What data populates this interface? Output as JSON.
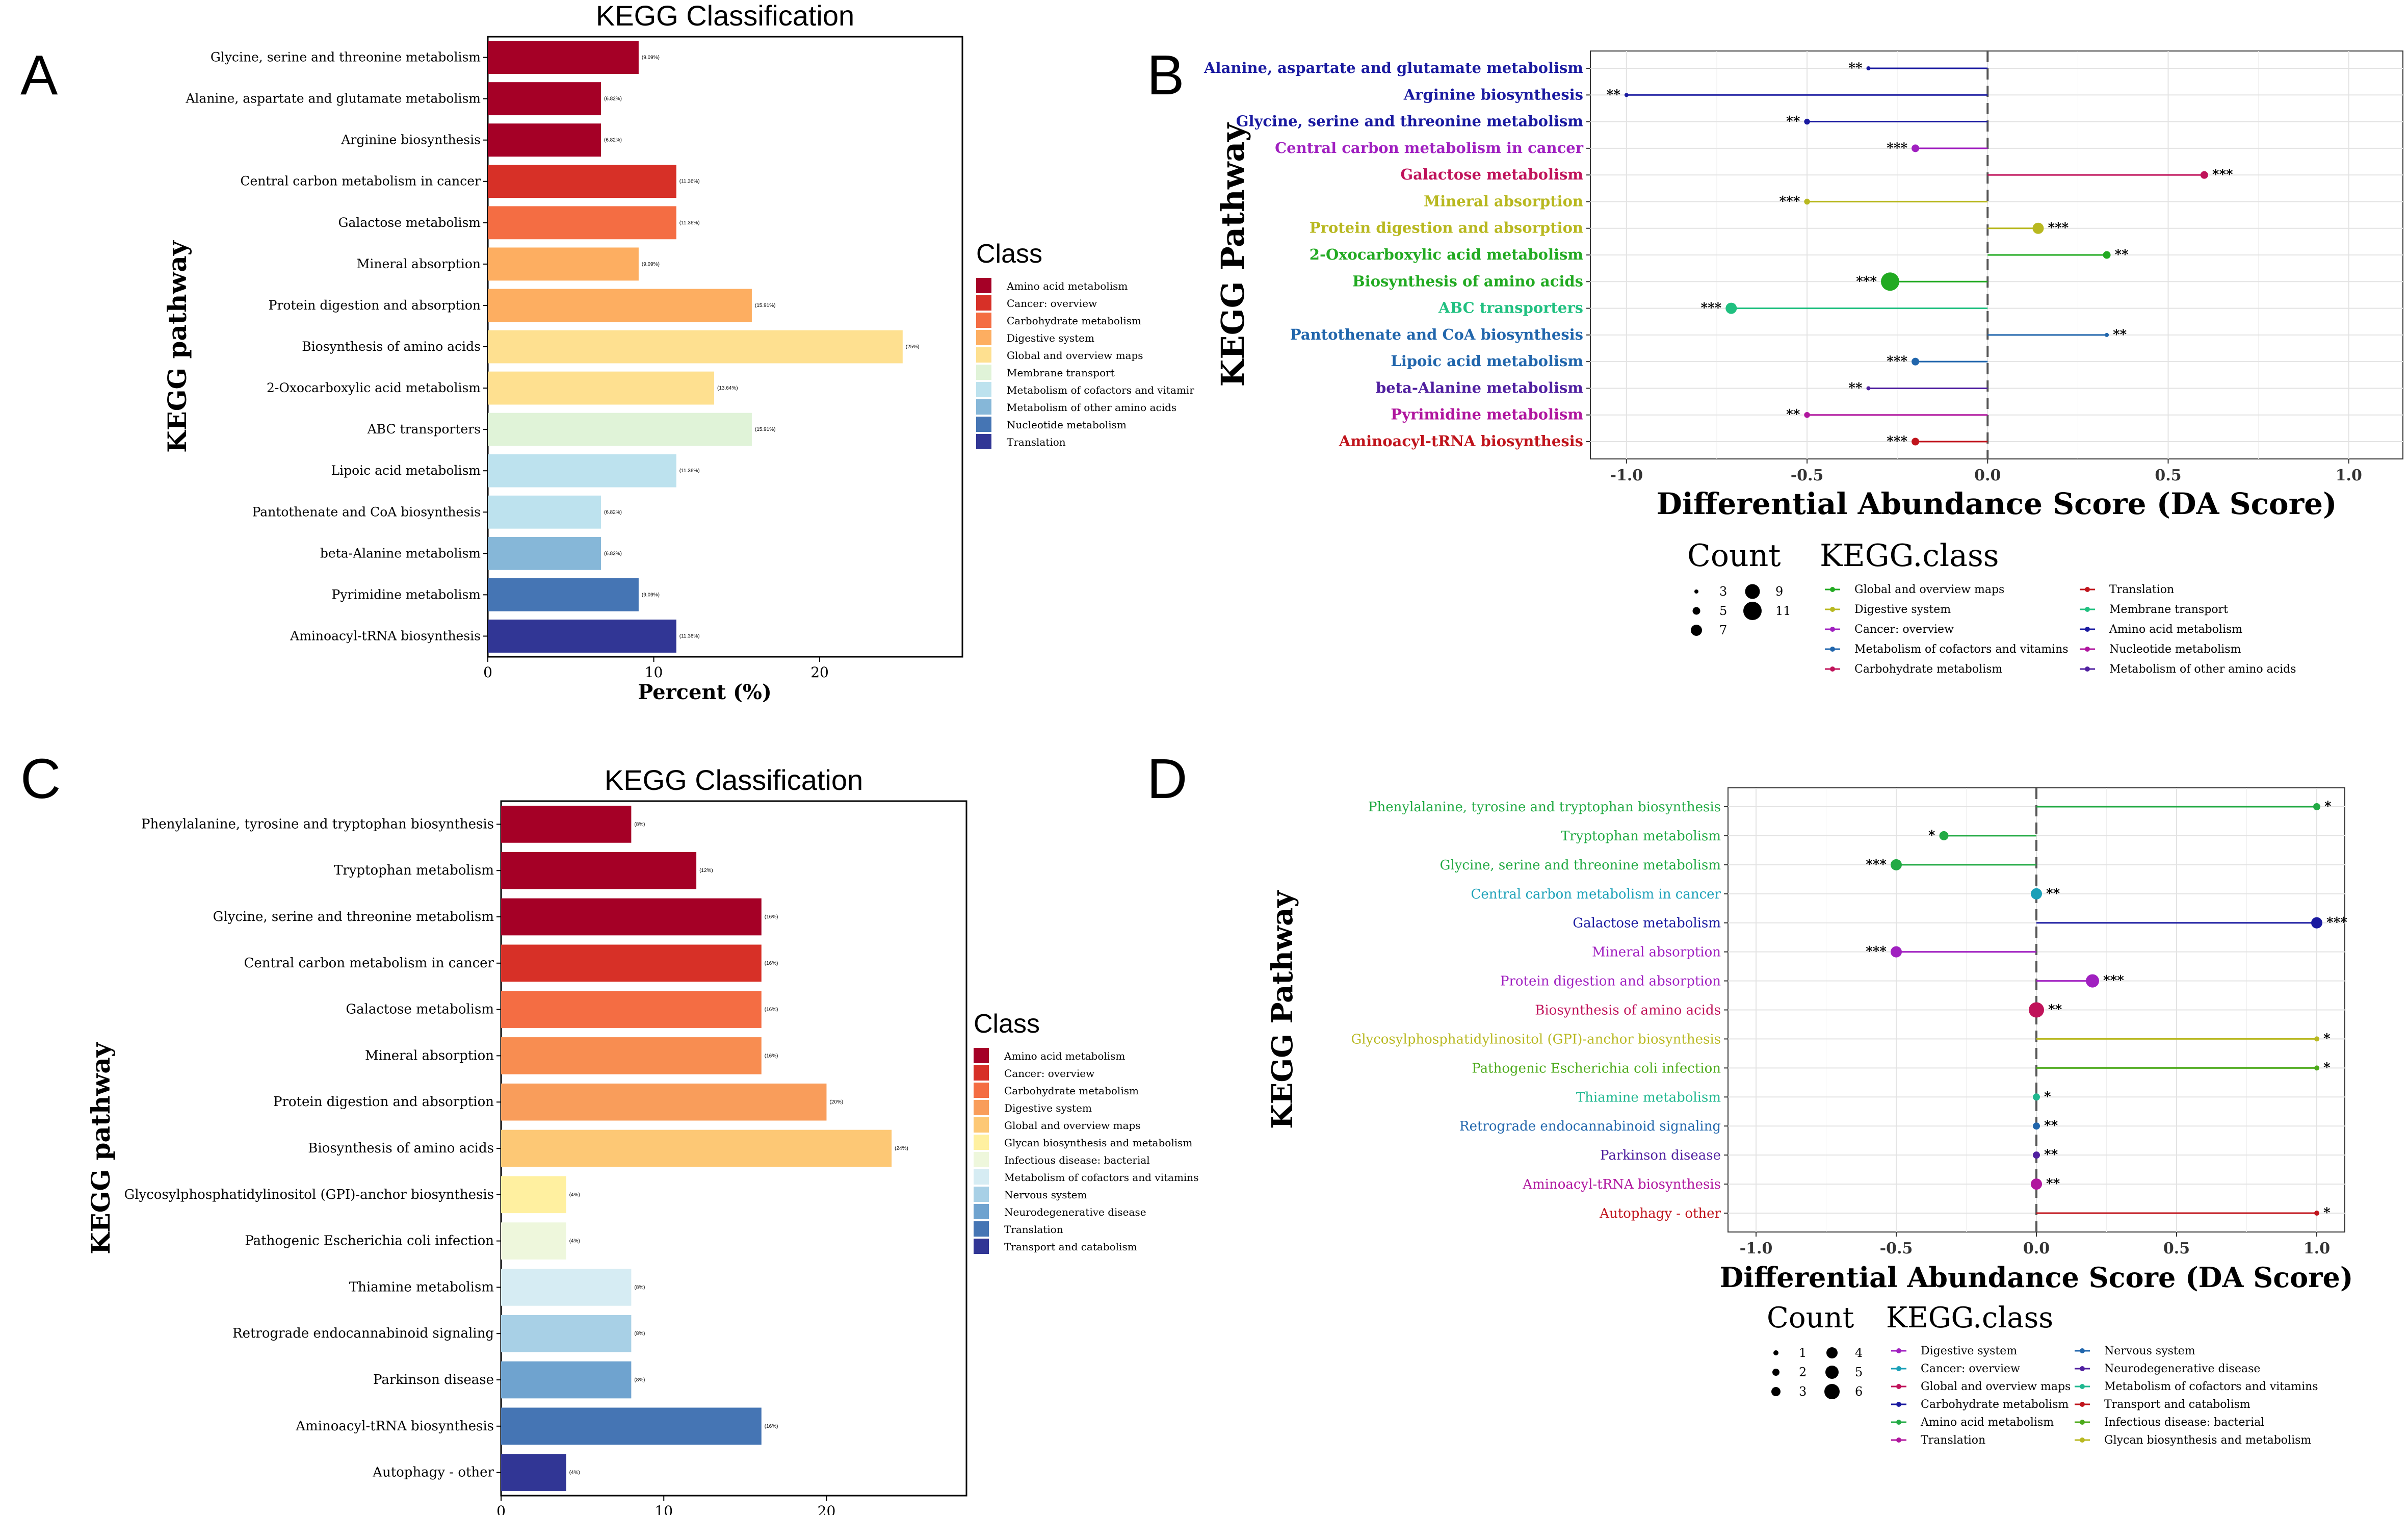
{
  "chart_data": [
    {
      "panel": "A",
      "type": "bar",
      "title": "KEGG Classification",
      "xlabel": "Percent (%)",
      "ylabel": "KEGG pathway",
      "xlim": [
        0,
        28.6
      ],
      "xticks": [
        0,
        10,
        20
      ],
      "categories": [
        "Glycine, serine and threonine metabolism",
        "Alanine, aspartate and glutamate metabolism",
        "Arginine biosynthesis",
        "Central carbon metabolism in cancer",
        "Galactose metabolism",
        "Mineral absorption",
        "Protein digestion and absorption",
        "Biosynthesis of amino acids",
        "2-Oxocarboxylic acid metabolism",
        "ABC transporters",
        "Lipoic acid metabolism",
        "Pantothenate and CoA biosynthesis",
        "beta-Alanine metabolism",
        "Pyrimidine metabolism",
        "Aminoacyl-tRNA biosynthesis"
      ],
      "values": [
        9.09,
        6.82,
        6.82,
        11.36,
        11.36,
        9.09,
        15.91,
        25,
        13.64,
        15.91,
        11.36,
        6.82,
        6.82,
        9.09,
        11.36
      ],
      "labels": [
        "(9.09%)",
        "(6.82%)",
        "(6.82%)",
        "(11.36%)",
        "(11.36%)",
        "(9.09%)",
        "(15.91%)",
        "(25%)",
        "(13.64%)",
        "(15.91%)",
        "(11.36%)",
        "(6.82%)",
        "(6.82%)",
        "(9.09%)",
        "(11.36%)"
      ],
      "bar_colors": [
        "#a50026",
        "#a50026",
        "#a50026",
        "#d73027",
        "#f46d43",
        "#fdae61",
        "#fdae61",
        "#fee090",
        "#fee090",
        "#e0f3d8",
        "#bde2ee",
        "#bde2ee",
        "#86b7d8",
        "#4575b4",
        "#313695"
      ],
      "legend_title": "Class",
      "legend": [
        {
          "label": "Amino acid metabolism",
          "color": "#a50026"
        },
        {
          "label": "Cancer: overview",
          "color": "#d73027"
        },
        {
          "label": "Carbohydrate metabolism",
          "color": "#f46d43"
        },
        {
          "label": "Digestive system",
          "color": "#fdae61"
        },
        {
          "label": "Global and overview maps",
          "color": "#fee090"
        },
        {
          "label": "Membrane transport",
          "color": "#e0f3d8"
        },
        {
          "label": "Metabolism of cofactors and vitamir",
          "color": "#bde2ee"
        },
        {
          "label": "Metabolism of other amino acids",
          "color": "#86b7d8"
        },
        {
          "label": "Nucleotide metabolism",
          "color": "#4575b4"
        },
        {
          "label": "Translation",
          "color": "#313695"
        }
      ]
    },
    {
      "panel": "B",
      "type": "scatter",
      "xlabel": "Differential Abundance Score (DA Score)",
      "ylabel": "KEGG Pathway",
      "xlim": [
        -1.1,
        1.15
      ],
      "xticks": [
        -1.0,
        -0.5,
        0.0,
        0.5,
        1.0
      ],
      "xtick_labels": [
        "-1.0",
        "-0.5",
        "0.0",
        "0.5",
        "1.0"
      ],
      "categories": [
        "Alanine, aspartate and glutamate metabolism",
        "Arginine biosynthesis",
        "Glycine, serine and threonine metabolism",
        "Central carbon metabolism in cancer",
        "Galactose metabolism",
        "Mineral absorption",
        "Protein digestion and absorption",
        "2-Oxocarboxylic acid metabolism",
        "Biosynthesis of amino acids",
        "ABC transporters",
        "Pantothenate and CoA biosynthesis",
        "Lipoic acid metabolism",
        "beta-Alanine metabolism",
        "Pyrimidine metabolism",
        "Aminoacyl-tRNA biosynthesis"
      ],
      "values": [
        -0.33,
        -1.0,
        -0.5,
        -0.2,
        0.6,
        -0.5,
        0.14,
        0.33,
        -0.27,
        -0.71,
        0.33,
        -0.2,
        -0.33,
        -0.5,
        -0.2
      ],
      "counts": [
        3,
        3,
        4,
        5,
        5,
        4,
        7,
        5,
        11,
        7,
        3,
        5,
        3,
        4,
        5
      ],
      "significance": [
        "**",
        "**",
        "**",
        "***",
        "***",
        "***",
        "***",
        "**",
        "***",
        "***",
        "**",
        "***",
        "**",
        "**",
        "***"
      ],
      "point_colors": [
        "#1a1aa0",
        "#1a1aa0",
        "#1a1aa0",
        "#a020c0",
        "#c0135a",
        "#b8b820",
        "#b8b820",
        "#22aa22",
        "#22aa22",
        "#20c080",
        "#2166ac",
        "#2166ac",
        "#5020a0",
        "#b0169e",
        "#c0141c"
      ],
      "size_legend_title": "Count",
      "size_legend": [
        {
          "label": "3",
          "count": 3
        },
        {
          "label": "5",
          "count": 5
        },
        {
          "label": "7",
          "count": 7
        },
        {
          "label": "9",
          "count": 9
        },
        {
          "label": "11",
          "count": 11
        }
      ],
      "legend_title": "KEGG.class",
      "legend": [
        {
          "label": "Global and overview maps",
          "color": "#22aa22"
        },
        {
          "label": "Digestive system",
          "color": "#b8b820"
        },
        {
          "label": "Cancer: overview",
          "color": "#a020c0"
        },
        {
          "label": "Metabolism of cofactors and vitamins",
          "color": "#2166ac"
        },
        {
          "label": "Carbohydrate metabolism",
          "color": "#c0135a"
        },
        {
          "label": "Translation",
          "color": "#c0141c"
        },
        {
          "label": "Membrane transport",
          "color": "#20c080"
        },
        {
          "label": "Amino acid metabolism",
          "color": "#1a1aa0"
        },
        {
          "label": "Nucleotide metabolism",
          "color": "#b0169e"
        },
        {
          "label": "Metabolism of other amino acids",
          "color": "#5020a0"
        }
      ]
    },
    {
      "panel": "C",
      "type": "bar",
      "title": "KEGG Classification",
      "xlabel": "Percent (%)",
      "ylabel": "KEGG pathway",
      "xlim": [
        0,
        28.6
      ],
      "xticks": [
        0,
        10,
        20
      ],
      "categories": [
        "Phenylalanine, tyrosine and tryptophan biosynthesis",
        "Tryptophan metabolism",
        "Glycine, serine and threonine metabolism",
        "Central carbon metabolism in cancer",
        "Galactose metabolism",
        "Mineral absorption",
        "Protein digestion and absorption",
        "Biosynthesis of amino acids",
        "Glycosylphosphatidylinositol (GPI)-anchor biosynthesis",
        "Pathogenic Escherichia coli infection",
        "Thiamine metabolism",
        "Retrograde endocannabinoid signaling",
        "Parkinson disease",
        "Aminoacyl-tRNA biosynthesis",
        "Autophagy - other"
      ],
      "values": [
        8,
        12,
        16,
        16,
        16,
        16,
        20,
        24,
        4,
        4,
        8,
        8,
        8,
        16,
        4
      ],
      "labels": [
        "(8%)",
        "(12%)",
        "(16%)",
        "(16%)",
        "(16%)",
        "(16%)",
        "(20%)",
        "(24%)",
        "(4%)",
        "(4%)",
        "(8%)",
        "(8%)",
        "(8%)",
        "(16%)",
        "(4%)"
      ],
      "bar_colors": [
        "#a50026",
        "#a50026",
        "#a50026",
        "#d73027",
        "#f46d43",
        "#f88d51",
        "#f99d5b",
        "#fdc875",
        "#fff0a0",
        "#eef7dc",
        "#d6ecf3",
        "#a8d0e6",
        "#6fa3cf",
        "#4575b4",
        "#313695"
      ],
      "legend_title": "Class",
      "legend": [
        {
          "label": "Amino acid metabolism",
          "color": "#a50026"
        },
        {
          "label": "Cancer: overview",
          "color": "#d73027"
        },
        {
          "label": "Carbohydrate metabolism",
          "color": "#f46d43"
        },
        {
          "label": "Digestive system",
          "color": "#f99d5b"
        },
        {
          "label": "Global and overview maps",
          "color": "#fdc875"
        },
        {
          "label": "Glycan biosynthesis and metabolism",
          "color": "#fff0a0"
        },
        {
          "label": "Infectious disease: bacterial",
          "color": "#eef7dc"
        },
        {
          "label": "Metabolism of cofactors and vitamins",
          "color": "#d6ecf3"
        },
        {
          "label": "Nervous system",
          "color": "#a8d0e6"
        },
        {
          "label": "Neurodegenerative disease",
          "color": "#6fa3cf"
        },
        {
          "label": "Translation",
          "color": "#4575b4"
        },
        {
          "label": "Transport and catabolism",
          "color": "#313695"
        }
      ]
    },
    {
      "panel": "D",
      "type": "scatter",
      "xlabel": "Differential Abundance Score (DA Score)",
      "ylabel": "KEGG Pathway",
      "xlim": [
        -1.1,
        1.1
      ],
      "xticks": [
        -1.0,
        -0.5,
        0.0,
        0.5,
        1.0
      ],
      "xtick_labels": [
        "-1.0",
        "-0.5",
        "0.0",
        "0.5",
        "1.0"
      ],
      "categories": [
        "Phenylalanine, tyrosine and tryptophan biosynthesis",
        "Tryptophan metabolism",
        "Glycine, serine and threonine metabolism",
        "Central carbon metabolism in cancer",
        "Galactose metabolism",
        "Mineral absorption",
        "Protein digestion and absorption",
        "Biosynthesis of amino acids",
        "Glycosylphosphatidylinositol (GPI)-anchor biosynthesis",
        "Pathogenic Escherichia coli infection",
        "Thiamine metabolism",
        "Retrograde endocannabinoid signaling",
        "Parkinson disease",
        "Aminoacyl-tRNA biosynthesis",
        "Autophagy - other"
      ],
      "values": [
        1.0,
        -0.33,
        -0.5,
        0.0,
        1.0,
        -0.5,
        0.2,
        0.0,
        1.0,
        1.0,
        0.0,
        0.0,
        0.0,
        0.0,
        1.0
      ],
      "counts": [
        2,
        3,
        4,
        4,
        4,
        4,
        5,
        6,
        1,
        1,
        2,
        2,
        2,
        4,
        1
      ],
      "significance": [
        "*",
        "*",
        "***",
        "**",
        "***",
        "***",
        "***",
        "**",
        "*",
        "*",
        "*",
        "**",
        "**",
        "**",
        "*"
      ],
      "point_colors": [
        "#22aa44",
        "#22aa44",
        "#22aa44",
        "#1aa0b8",
        "#1a1aa0",
        "#a020c0",
        "#a020c0",
        "#c0135a",
        "#b8b820",
        "#4caa1a",
        "#20b890",
        "#2166ac",
        "#5020a0",
        "#b0169e",
        "#c0141c"
      ],
      "label_colors": [
        "#22aa44",
        "#22aa44",
        "#22aa44",
        "#1aa0b8",
        "#1a1aa0",
        "#a020c0",
        "#a020c0",
        "#c0135a",
        "#b8b820",
        "#4caa1a",
        "#20b890",
        "#2166ac",
        "#5020a0",
        "#b0169e",
        "#c0141c"
      ],
      "size_legend_title": "Count",
      "size_legend": [
        {
          "label": "1",
          "count": 1
        },
        {
          "label": "2",
          "count": 2
        },
        {
          "label": "3",
          "count": 3
        },
        {
          "label": "4",
          "count": 4
        },
        {
          "label": "5",
          "count": 5
        },
        {
          "label": "6",
          "count": 6
        }
      ],
      "legend_title": "KEGG.class",
      "legend": [
        {
          "label": "Digestive system",
          "color": "#a020c0"
        },
        {
          "label": "Cancer: overview",
          "color": "#1aa0b8"
        },
        {
          "label": "Global and overview maps",
          "color": "#c0135a"
        },
        {
          "label": "Carbohydrate metabolism",
          "color": "#1a1aa0"
        },
        {
          "label": "Amino acid metabolism",
          "color": "#22aa44"
        },
        {
          "label": "Translation",
          "color": "#b0169e"
        },
        {
          "label": "Nervous system",
          "color": "#2166ac"
        },
        {
          "label": "Neurodegenerative disease",
          "color": "#5020a0"
        },
        {
          "label": "Metabolism of cofactors and vitamins",
          "color": "#20b890"
        },
        {
          "label": "Transport and catabolism",
          "color": "#c0141c"
        },
        {
          "label": "Infectious disease: bacterial",
          "color": "#4caa1a"
        },
        {
          "label": "Glycan biosynthesis and metabolism",
          "color": "#b8b820"
        }
      ]
    }
  ],
  "panel_labels": [
    "A",
    "B",
    "C",
    "D"
  ]
}
